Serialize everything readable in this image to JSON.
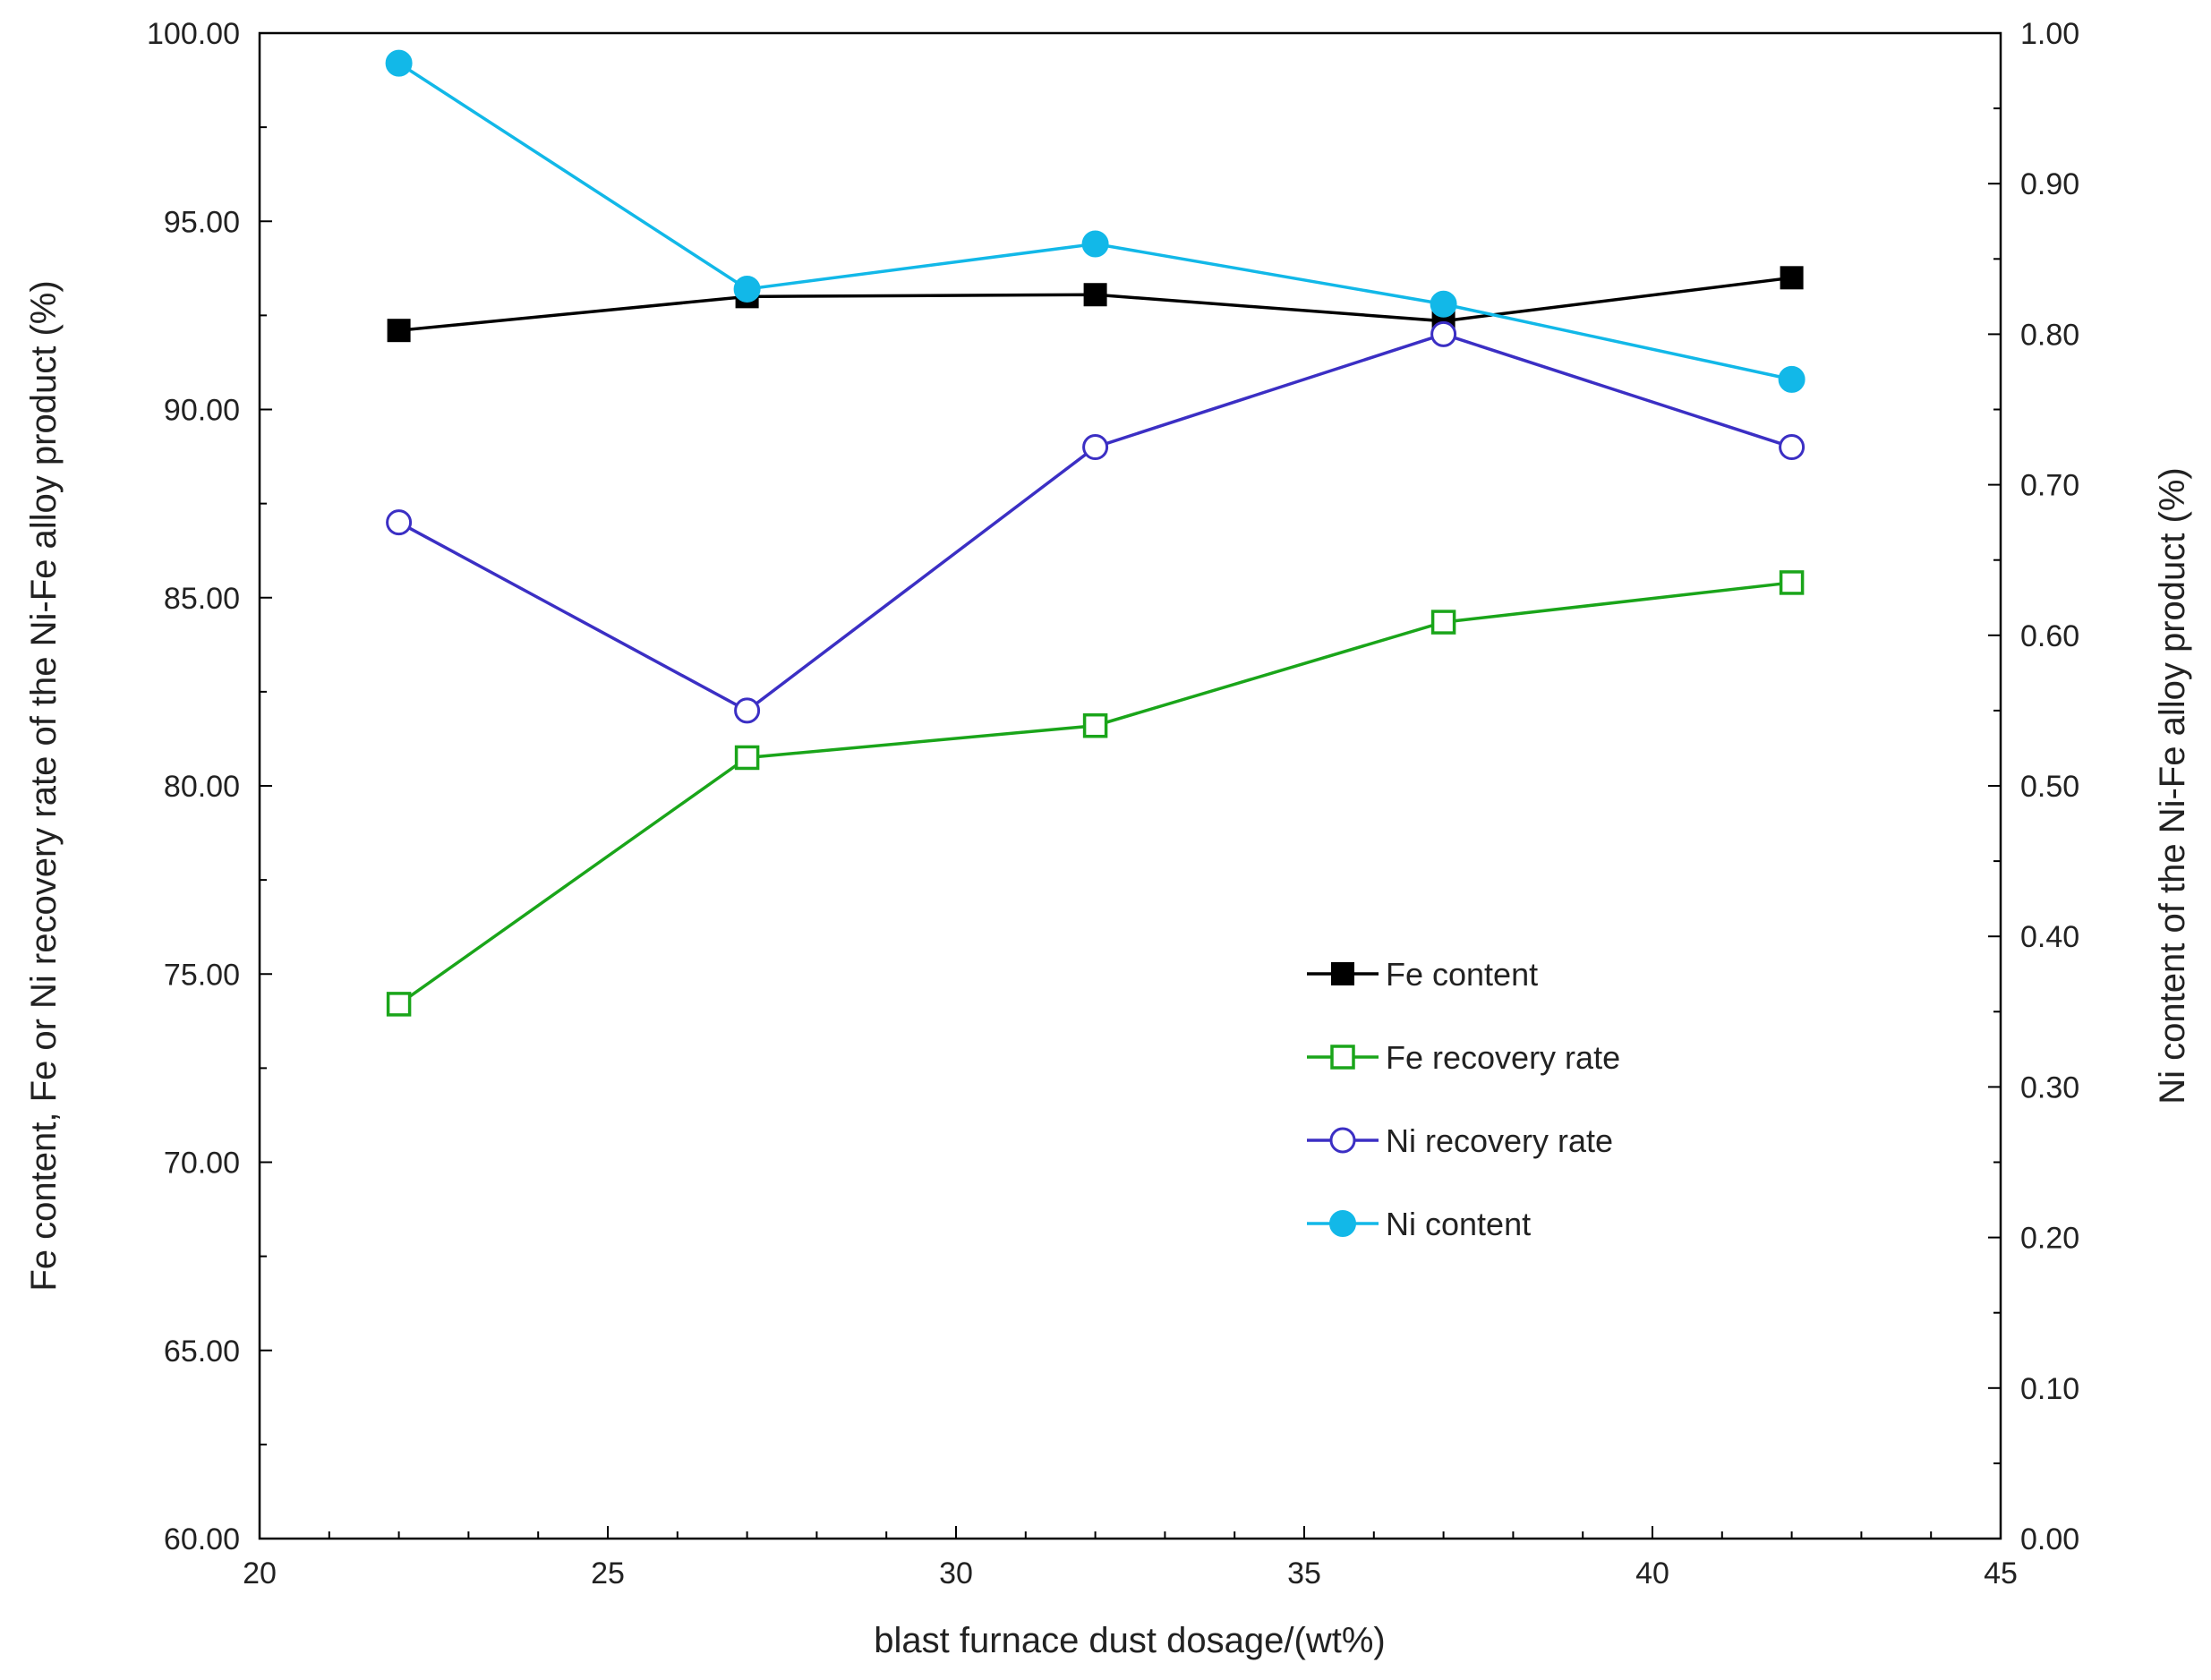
{
  "chart_data": {
    "type": "line",
    "x_label": "blast furnace dust dosage/(wt%)",
    "y_left_label": "Fe content, Fe or Ni recovery rate of the Ni-Fe alloy  product (%)",
    "y_right_label": "Ni content of the Ni-Fe alloy product (%)",
    "x_range": [
      20,
      45
    ],
    "x_ticks": [
      "20",
      "25",
      "30",
      "35",
      "40",
      "45"
    ],
    "x_tick_values": [
      20,
      25,
      30,
      35,
      40,
      45
    ],
    "y_left_range": [
      60,
      100
    ],
    "y_left_ticks": [
      "60.00",
      "65.00",
      "70.00",
      "75.00",
      "80.00",
      "85.00",
      "90.00",
      "95.00",
      "100.00"
    ],
    "y_left_tick_values": [
      60,
      65,
      70,
      75,
      80,
      85,
      90,
      95,
      100
    ],
    "y_right_range": [
      0,
      1
    ],
    "y_right_ticks": [
      "0.00",
      "0.10",
      "0.20",
      "0.30",
      "0.40",
      "0.50",
      "0.60",
      "0.70",
      "0.80",
      "0.90",
      "1.00"
    ],
    "y_right_tick_values": [
      0,
      0.1,
      0.2,
      0.3,
      0.4,
      0.5,
      0.6,
      0.7,
      0.8,
      0.9,
      1.0
    ],
    "x": [
      22,
      27,
      32,
      37,
      42
    ],
    "series": [
      {
        "name": "Fe content",
        "axis": "left",
        "marker": "square-filled",
        "color": "#000000",
        "values": [
          92.1,
          93.0,
          93.05,
          92.35,
          93.5
        ]
      },
      {
        "name": "Fe recovery rate",
        "axis": "left",
        "marker": "square-open",
        "color": "#1aa51a",
        "values": [
          74.2,
          80.75,
          81.6,
          84.35,
          85.4
        ]
      },
      {
        "name": "Ni recovery rate",
        "axis": "left",
        "marker": "circle-open",
        "color": "#3b2fc4",
        "values": [
          87.0,
          82.0,
          89.0,
          92.0,
          89.0
        ]
      },
      {
        "name": "Ni content",
        "axis": "right",
        "marker": "circle-filled",
        "color": "#12b8e8",
        "values": [
          0.98,
          0.83,
          0.86,
          0.82,
          0.77
        ]
      }
    ],
    "legend_position": "center-right"
  }
}
